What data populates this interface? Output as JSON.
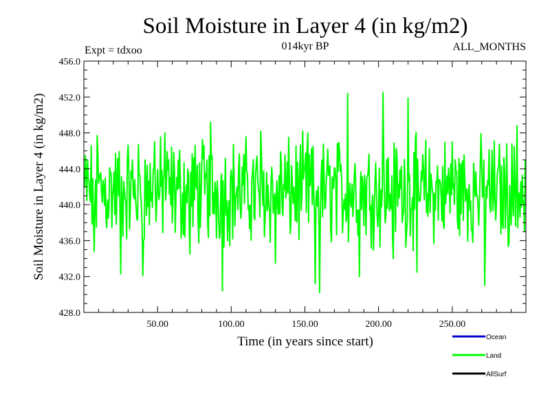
{
  "chart_data": {
    "type": "line",
    "title": "Soil Moisture in Layer 4 (in kg/m2)",
    "subtitle": "014kyr BP",
    "left_note": "Expt = tdxoo",
    "right_note": "ALL_MONTHS",
    "xlabel": "Time (in years since start)",
    "ylabel": "Soil Moisture in Layer 4 (in kg/m2)",
    "xlim": [
      0,
      300
    ],
    "ylim": [
      428,
      456
    ],
    "x_ticks": [
      "50.00",
      "100.00",
      "150.00",
      "200.00",
      "250.00"
    ],
    "x_tick_values": [
      50,
      100,
      150,
      200,
      250
    ],
    "y_ticks": [
      "428.0",
      "432.0",
      "436.0",
      "440.0",
      "444.0",
      "448.0",
      "452.0",
      "456.0"
    ],
    "y_tick_values": [
      428,
      432,
      436,
      440,
      444,
      448,
      452,
      456
    ],
    "grid": false,
    "legend_placement": "bottom-right",
    "series": [
      {
        "name": "Land",
        "color": "#00ff00",
        "x_start": 0.5,
        "x_step": 0.5,
        "y_mean": 441.5,
        "values_summary": {
          "min": 430.2,
          "max": 452.5
        },
        "keypoints": [
          {
            "x": 1,
            "y": 445.5
          },
          {
            "x": 7,
            "y": 434.8
          },
          {
            "x": 9,
            "y": 447.7
          },
          {
            "x": 25,
            "y": 432.3
          },
          {
            "x": 40,
            "y": 432.1
          },
          {
            "x": 48,
            "y": 447.0
          },
          {
            "x": 55,
            "y": 448.0
          },
          {
            "x": 72,
            "y": 434.5
          },
          {
            "x": 86,
            "y": 449.2
          },
          {
            "x": 94,
            "y": 430.4
          },
          {
            "x": 120,
            "y": 448.2
          },
          {
            "x": 130,
            "y": 433.5
          },
          {
            "x": 152,
            "y": 448.0
          },
          {
            "x": 157,
            "y": 431.2
          },
          {
            "x": 160,
            "y": 430.2
          },
          {
            "x": 179,
            "y": 452.4
          },
          {
            "x": 187,
            "y": 432.0
          },
          {
            "x": 203,
            "y": 452.5
          },
          {
            "x": 210,
            "y": 434.0
          },
          {
            "x": 220,
            "y": 451.9
          },
          {
            "x": 226,
            "y": 432.5
          },
          {
            "x": 250,
            "y": 447.0
          },
          {
            "x": 272,
            "y": 431.0
          },
          {
            "x": 294,
            "y": 448.8
          },
          {
            "x": 299,
            "y": 437.0
          }
        ]
      },
      {
        "name": "Ocean",
        "color": "#0000cc"
      },
      {
        "name": "AllSurf",
        "color": "#000000"
      }
    ]
  }
}
